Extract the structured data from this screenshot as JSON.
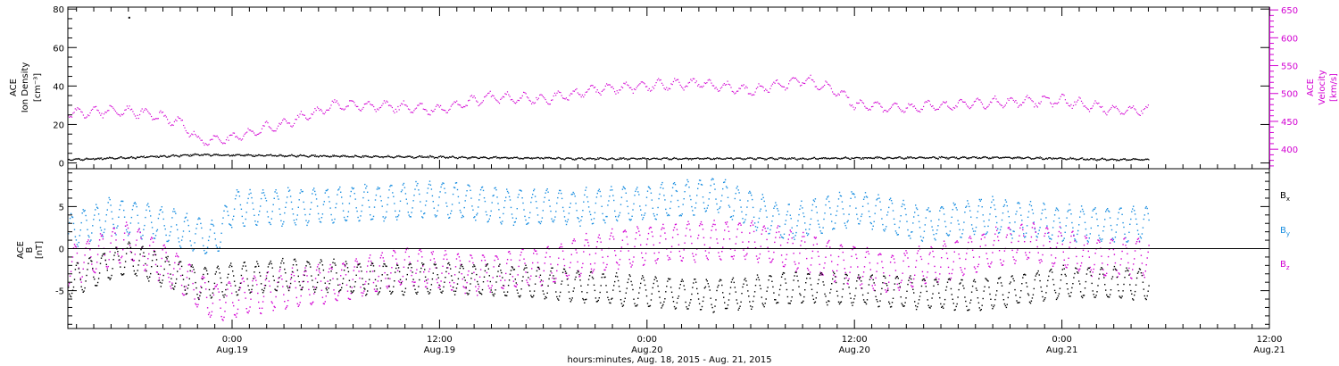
{
  "figure": {
    "footer": "hours:minutes, Aug. 18, 2015 - Aug. 21, 2015"
  },
  "colors": {
    "density": "#000000",
    "velocity": "#d200d2",
    "bx": "#000000",
    "by": "#1a8ee0",
    "bz": "#d200d2",
    "axis": "#000000"
  },
  "chart_data": [
    {
      "type": "scatter",
      "panel": "top",
      "time_range": [
        "2015-08-18 14:30",
        "2015-08-21 12:00"
      ],
      "time_ticks": [
        {
          "time": "2015-08-19 00:00",
          "label": "0:00",
          "sublabel": "Aug.19"
        },
        {
          "time": "2015-08-19 12:00",
          "label": "12:00",
          "sublabel": "Aug.19"
        },
        {
          "time": "2015-08-20 00:00",
          "label": "0:00",
          "sublabel": "Aug.20"
        },
        {
          "time": "2015-08-20 12:00",
          "label": "12:00",
          "sublabel": "Aug.20"
        },
        {
          "time": "2015-08-21 00:00",
          "label": "0:00",
          "sublabel": "Aug.21"
        },
        {
          "time": "2015-08-21 12:00",
          "label": "12:00",
          "sublabel": "Aug.21"
        }
      ],
      "left_axis": {
        "label_lines": [
          "ACE",
          "Ion Density",
          "[cm⁻³]"
        ],
        "ylim": [
          -3,
          81
        ],
        "ticks": [
          "0",
          "20",
          "40",
          "60",
          "80"
        ],
        "tick_values": [
          0,
          20,
          40,
          60,
          80
        ]
      },
      "right_axis": {
        "label_lines": [
          "ACE",
          "Velocity",
          "[km/s]"
        ],
        "ylim": [
          365,
          655
        ],
        "ticks": [
          "400",
          "450",
          "500",
          "550",
          "600",
          "650"
        ],
        "tick_values": [
          400,
          450,
          500,
          550,
          600,
          650
        ]
      },
      "series": [
        {
          "name": "density",
          "axis": "left",
          "x": [
            "2015-08-18 14:30",
            "2015-08-18 18:00",
            "2015-08-18 22:00",
            "2015-08-19 03:00",
            "2015-08-19 09:00",
            "2015-08-19 15:00",
            "2015-08-19 21:00",
            "2015-08-20 03:00",
            "2015-08-20 09:00",
            "2015-08-20 15:00",
            "2015-08-20 21:00",
            "2015-08-21 03:00",
            "2015-08-21 05:00"
          ],
          "y": [
            2,
            3,
            4.5,
            4,
            3.5,
            3,
            2.5,
            2.5,
            2.5,
            3,
            3,
            2,
            2
          ],
          "outlier": {
            "x": "2015-08-18 18:00",
            "y": 76
          }
        },
        {
          "name": "velocity",
          "axis": "right",
          "x": [
            "2015-08-18 14:30",
            "2015-08-18 17:00",
            "2015-08-18 19:00",
            "2015-08-18 21:00",
            "2015-08-18 22:00",
            "2015-08-19 00:00",
            "2015-08-19 03:00",
            "2015-08-19 06:00",
            "2015-08-19 09:00",
            "2015-08-19 12:00",
            "2015-08-19 15:00",
            "2015-08-19 18:00",
            "2015-08-19 21:00",
            "2015-08-20 00:00",
            "2015-08-20 03:00",
            "2015-08-20 06:00",
            "2015-08-20 09:00",
            "2015-08-20 11:00",
            "2015-08-20 12:00",
            "2015-08-20 15:00",
            "2015-08-20 18:00",
            "2015-08-20 21:00",
            "2015-08-21 00:00",
            "2015-08-21 03:00",
            "2015-08-21 05:00"
          ],
          "y": [
            465,
            470,
            465,
            450,
            415,
            420,
            448,
            480,
            478,
            472,
            495,
            490,
            508,
            515,
            520,
            505,
            525,
            505,
            480,
            475,
            482,
            486,
            488,
            470,
            472
          ]
        }
      ]
    },
    {
      "type": "scatter",
      "panel": "bottom",
      "time_range": [
        "2015-08-18 14:30",
        "2015-08-21 12:00"
      ],
      "left_axis": {
        "label_lines": [
          "ACE",
          "B",
          "[nT]"
        ],
        "ylim": [
          -9.5,
          9.5
        ],
        "ticks": [
          "-5",
          "0",
          "5"
        ],
        "tick_values": [
          -5,
          0,
          5
        ]
      },
      "zero_line": true,
      "legend": {
        "placement": "right",
        "entries": [
          "B",
          "B",
          "B"
        ],
        "subscripts": [
          "x",
          "y",
          "z"
        ]
      },
      "series": [
        {
          "name": "bx",
          "x": [
            "2015-08-18 14:30",
            "2015-08-18 18:00",
            "2015-08-18 22:00",
            "2015-08-19 03:00",
            "2015-08-19 08:00",
            "2015-08-19 13:00",
            "2015-08-19 18:00",
            "2015-08-19 23:00",
            "2015-08-20 04:00",
            "2015-08-20 09:00",
            "2015-08-20 14:00",
            "2015-08-20 19:00",
            "2015-08-21 00:00",
            "2015-08-21 05:00"
          ],
          "y": [
            -4,
            -1,
            -4,
            -3,
            -3.5,
            -3.5,
            -4,
            -5,
            -5.5,
            -4.5,
            -5,
            -5.5,
            -4,
            -4
          ]
        },
        {
          "name": "by",
          "x": [
            "2015-08-18 14:30",
            "2015-08-18 17:00",
            "2015-08-18 20:00",
            "2015-08-18 23:00",
            "2015-08-19 00:00",
            "2015-08-19 04:00",
            "2015-08-19 08:00",
            "2015-08-19 12:00",
            "2015-08-19 16:00",
            "2015-08-19 20:00",
            "2015-08-20 00:00",
            "2015-08-20 04:00",
            "2015-08-20 08:00",
            "2015-08-20 12:00",
            "2015-08-20 16:00",
            "2015-08-20 20:00",
            "2015-08-21 00:00",
            "2015-08-21 05:00"
          ],
          "y": [
            2,
            4,
            3,
            1,
            5,
            5,
            5.5,
            6,
            5,
            5,
            5.5,
            6.5,
            3,
            5,
            3,
            4,
            3,
            3
          ]
        },
        {
          "name": "bz",
          "x": [
            "2015-08-18 14:30",
            "2015-08-18 18:00",
            "2015-08-18 21:00",
            "2015-08-18 23:00",
            "2015-08-19 02:00",
            "2015-08-19 06:00",
            "2015-08-19 10:00",
            "2015-08-19 14:00",
            "2015-08-19 18:00",
            "2015-08-19 22:00",
            "2015-08-20 02:00",
            "2015-08-20 06:00",
            "2015-08-20 10:00",
            "2015-08-20 14:00",
            "2015-08-20 18:00",
            "2015-08-20 22:00",
            "2015-08-21 02:00",
            "2015-08-21 05:00"
          ],
          "y": [
            -2,
            1,
            -3,
            -6.5,
            -5,
            -4,
            -2,
            -3,
            -2,
            0,
            1,
            1,
            -1,
            -3,
            -1,
            1,
            -1,
            -1
          ]
        }
      ]
    }
  ]
}
